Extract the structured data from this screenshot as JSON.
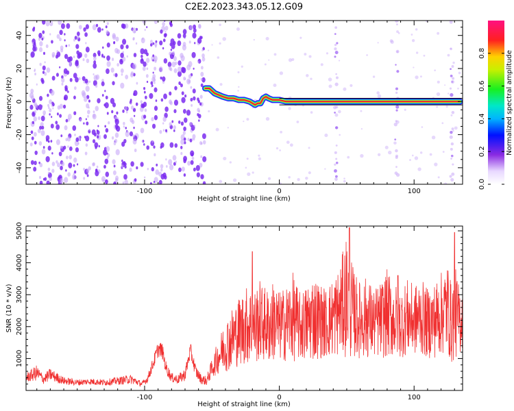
{
  "title": "C2E2.2023.343.05.12.G09",
  "colors": {
    "snr_line": "#f03030",
    "ridge_core": "#e8183a",
    "scatter": "#7b2cf0",
    "scatter_light": "#c8a8f8"
  },
  "chart_data": [
    {
      "type": "heatmap",
      "title": "C2E2.2023.343.05.12.G09",
      "xlabel": "Height of straight line (km)",
      "ylabel": "Frequency (Hz)",
      "xlim": [
        -188,
        136
      ],
      "ylim": [
        -50,
        49
      ],
      "xticks": [
        -100,
        0,
        100
      ],
      "yticks": [
        -40,
        -20,
        0,
        20,
        40
      ],
      "colorbar": {
        "label": "Normalized spectral amplitude",
        "range": [
          0.0,
          1.0
        ],
        "ticks": [
          0.0,
          0.2,
          0.4,
          0.6,
          0.8
        ],
        "colormap": "rainbow (white-violet-blue-cyan-green-yellow-red-magenta)"
      },
      "ridge": {
        "x": [
          -55,
          -52,
          -48,
          -45,
          -42,
          -38,
          -34,
          -30,
          -26,
          -22,
          -20,
          -18,
          -16,
          -14,
          -12,
          -10,
          -8,
          -5,
          -2,
          0,
          5,
          10,
          20,
          40,
          60,
          80,
          100,
          120,
          134
        ],
        "y": [
          8,
          8,
          5,
          4,
          3,
          2,
          2,
          1,
          1,
          0,
          -1,
          -2,
          -1,
          -1,
          2,
          3,
          2,
          1,
          1,
          1,
          0,
          0,
          0,
          0,
          0,
          0,
          0,
          0,
          0
        ]
      },
      "grid": false,
      "legend": "none"
    },
    {
      "type": "line",
      "xlabel": "Height of straight line (km)",
      "ylabel": "SNR (10 * v/v)",
      "xlim": [
        -188,
        136
      ],
      "ylim": [
        0,
        5150
      ],
      "xticks": [
        -100,
        0,
        100
      ],
      "yticks": [
        1000,
        2000,
        3000,
        4000,
        5000
      ],
      "envelope": {
        "x": [
          -188,
          -180,
          -175,
          -170,
          -160,
          -150,
          -140,
          -130,
          -120,
          -110,
          -102,
          -98,
          -94,
          -90,
          -87,
          -84,
          -80,
          -75,
          -70,
          -66,
          -62,
          -58,
          -54,
          -50,
          -46,
          -42,
          -38,
          -34,
          -30,
          -26,
          -22,
          -20,
          -18,
          -15,
          -12,
          -8,
          -4,
          0,
          5,
          10,
          15,
          20,
          25,
          30,
          35,
          40,
          45,
          50,
          55,
          60,
          65,
          70,
          75,
          80,
          85,
          90,
          95,
          100,
          105,
          110,
          115,
          120,
          125,
          128,
          130,
          133,
          136
        ],
        "mean": [
          400,
          550,
          350,
          500,
          300,
          250,
          280,
          250,
          300,
          350,
          200,
          350,
          800,
          1300,
          1250,
          700,
          400,
          350,
          500,
          1250,
          600,
          350,
          300,
          700,
          1000,
          1300,
          1500,
          1700,
          1850,
          2000,
          2100,
          1900,
          2000,
          2200,
          2100,
          2000,
          2200,
          2000,
          2100,
          2300,
          2000,
          2100,
          2300,
          2200,
          2100,
          2300,
          2500,
          3000,
          2400,
          2200,
          2300,
          2100,
          2200,
          2400,
          2200,
          2100,
          2300,
          2200,
          2300,
          2100,
          2200,
          2400,
          2600,
          2000,
          2500,
          2200,
          2300
        ],
        "amp": [
          150,
          250,
          150,
          200,
          120,
          100,
          100,
          100,
          120,
          150,
          80,
          120,
          200,
          250,
          250,
          200,
          150,
          150,
          200,
          250,
          200,
          150,
          150,
          300,
          500,
          700,
          900,
          1000,
          1100,
          1200,
          1300,
          1100,
          1200,
          1300,
          1200,
          1200,
          1300,
          1100,
          1200,
          1400,
          1100,
          1200,
          1400,
          1200,
          1100,
          1300,
          1400,
          2000,
          1400,
          1200,
          1300,
          1100,
          1200,
          1400,
          1200,
          1100,
          1200,
          1100,
          1200,
          1100,
          1200,
          1300,
          1500,
          1200,
          1500,
          1200,
          1000
        ]
      },
      "peaks": [
        {
          "x": 52,
          "y": 5100
        },
        {
          "x": -20,
          "y": 4350
        },
        {
          "x": 130,
          "y": 4950
        },
        {
          "x": 88,
          "y": 3600
        }
      ],
      "grid": false,
      "legend": "none"
    }
  ]
}
